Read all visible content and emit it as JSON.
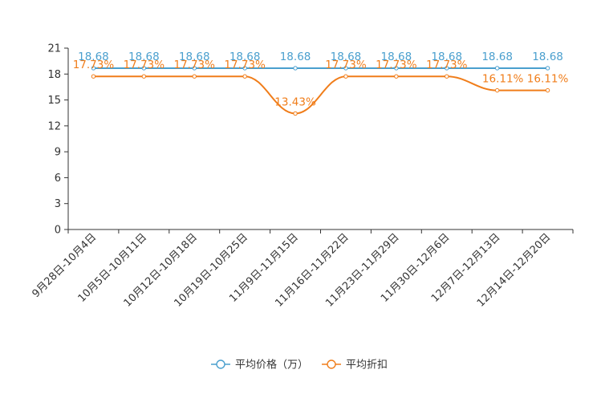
{
  "chart_data": {
    "type": "line",
    "title": "",
    "xlabel": "",
    "ylabel": "",
    "ylim": [
      0,
      21
    ],
    "yticks": [
      0,
      3,
      6,
      9,
      12,
      15,
      18,
      21
    ],
    "categories": [
      "9月28日-10月4日",
      "10月5日-10月11日",
      "10月12日-10月18日",
      "10月19日-10月25日",
      "11月9日-11月15日",
      "11月16日-11月22日",
      "11月23日-11月29日",
      "11月30日-12月6日",
      "12月7日-12月13日",
      "12月14日-12月20日"
    ],
    "series": [
      {
        "name": "平均价格（万）",
        "color": "#4a9fce",
        "values": [
          18.68,
          18.68,
          18.68,
          18.68,
          18.68,
          18.68,
          18.68,
          18.68,
          18.68,
          18.68
        ],
        "labels": [
          "18.68",
          "18.68",
          "18.68",
          "18.68",
          "18.68",
          "18.68",
          "18.68",
          "18.68",
          "18.68",
          "18.68"
        ]
      },
      {
        "name": "平均折扣",
        "color": "#f07d1a",
        "values": [
          17.73,
          17.73,
          17.73,
          17.73,
          13.43,
          17.73,
          17.73,
          17.73,
          16.11,
          16.11
        ],
        "labels": [
          "17.73%",
          "17.73%",
          "17.73%",
          "17.73%",
          "13.43%",
          "17.73%",
          "17.73%",
          "17.73%",
          "16.11%",
          "16.11%"
        ]
      }
    ],
    "legend_position": "bottom-center"
  }
}
